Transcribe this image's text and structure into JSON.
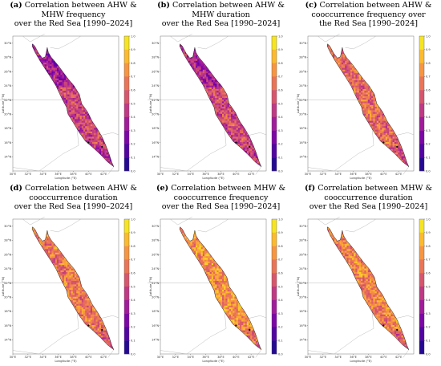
{
  "panels": [
    {
      "letter": "(a)",
      "lines": [
        "Correlation between AHW &",
        "MHW frequency",
        "over the Red Sea [1990–2024]"
      ]
    },
    {
      "letter": "(b)",
      "lines": [
        "Correlation between AHW &",
        "MHW duration",
        "over the Red Sea [1990–2024]"
      ]
    },
    {
      "letter": "(c)",
      "lines": [
        "Correlation between AHW &",
        "cooccurrence frequency over",
        "the Red Sea [1990–2024]"
      ]
    },
    {
      "letter": "(d)",
      "lines": [
        "Correlation between AHW &",
        "cooccurrence duration",
        "over the Red Sea [1990–2024]"
      ]
    },
    {
      "letter": "(e)",
      "lines": [
        "Correlation between MHW &",
        "cooccurrence frequency",
        "over the Red Sea [1990–2024]"
      ]
    },
    {
      "letter": "(f)",
      "lines": [
        "Correlation between MHW &",
        "cooccurrence duration",
        "over the Red Sea [1990–2024]"
      ]
    }
  ],
  "axes": {
    "xlabel": "Longitude (°E)",
    "ylabel": "Latitude (°N)",
    "xticks": [
      "30°E",
      "32°E",
      "34°E",
      "36°E",
      "38°E",
      "40°E",
      "42°E"
    ],
    "yticks": [
      "30°N",
      "28°N",
      "26°N",
      "24°N",
      "22°N",
      "20°N",
      "18°N",
      "16°N",
      "14°N"
    ]
  },
  "colorbar": {
    "ticks": [
      "1.0",
      "0.9",
      "0.8",
      "0.7",
      "0.6",
      "0.5",
      "0.4",
      "0.3",
      "0.2",
      "0.1",
      "0.0"
    ],
    "colors": [
      "#0d0887",
      "#3c0a9c",
      "#6a00a8",
      "#8f0da4",
      "#b12a90",
      "#cc4778",
      "#e16462",
      "#f2844b",
      "#fca636",
      "#fcce25",
      "#f0f921"
    ]
  },
  "panel_mean_values": [
    0.5,
    0.52,
    0.62,
    0.66,
    0.74,
    0.7
  ]
}
